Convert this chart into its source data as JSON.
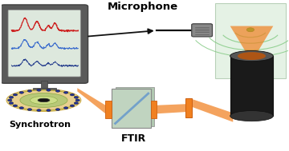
{
  "bg_color": "#ffffff",
  "labels": {
    "microphone": "Microphone",
    "synchrotron": "Synchrotron",
    "ftir": "FTIR"
  },
  "monitor_color": "#5a5a5a",
  "screen_color": "#dde8dd",
  "red_line_color": "#dd2222",
  "blue_line_color": "#3355aa",
  "dark_blue_color": "#112266",
  "orange_beam": "#f08020",
  "beam_alpha": 0.7,
  "syn_ring_outer": "#e8d090",
  "syn_ring_mid": "#b8c878",
  "syn_ring_inner": "#88bb44",
  "syn_dot_color": "#223399",
  "det_color": "#1a1a1a",
  "det_top_color": "#444444",
  "cube_color": "#d8ecd8",
  "cube_edge": "#99bb99",
  "wave_color": "#88cc88",
  "green_dot": "#44cc44",
  "mic_color": "#888888",
  "ftir_color": "#c0d4c0",
  "ftir_bs_color": "#6699cc",
  "mirror_color": "#f08020",
  "arrow_color": "#111111"
}
